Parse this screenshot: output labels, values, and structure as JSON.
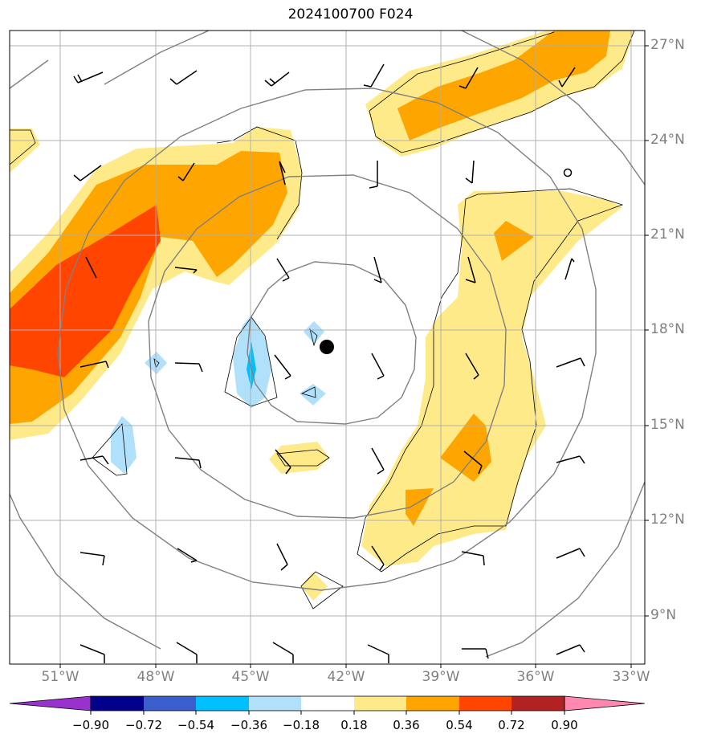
{
  "title": "2024100700 F024",
  "lat_labels": [
    "27°N",
    "24°N",
    "21°N",
    "18°N",
    "15°N",
    "12°N",
    "9°N"
  ],
  "lon_labels": [
    "51°W",
    "48°W",
    "45°W",
    "42°W",
    "39°W",
    "36°W",
    "33°W"
  ],
  "colorbar": {
    "ticks": [
      "−0.90",
      "−0.72",
      "−0.54",
      "−0.36",
      "−0.18",
      "0.18",
      "0.36",
      "0.54",
      "0.72",
      "0.90"
    ],
    "colors": [
      "#9932cc",
      "#00008b",
      "#3a5fcd",
      "#00bfff",
      "#b0e0fa",
      "#ffffff",
      "#ffea8a",
      "#ffa500",
      "#ff4500",
      "#b22222",
      "#ff88b0"
    ]
  },
  "colors": {
    "contour_0_36": "#ffea8a",
    "contour_0_54": "#ffa500",
    "contour_0_72": "#ff4500",
    "contour_neg_0_36": "#b0e0fa",
    "contour_neg_0_54": "#00bfff",
    "range_rings": "#808080",
    "gridlines": "#b0b0b0"
  },
  "icons": {
    "storm_center": "filled-circle-marker",
    "wind_barb": "wind-barb-icon"
  }
}
